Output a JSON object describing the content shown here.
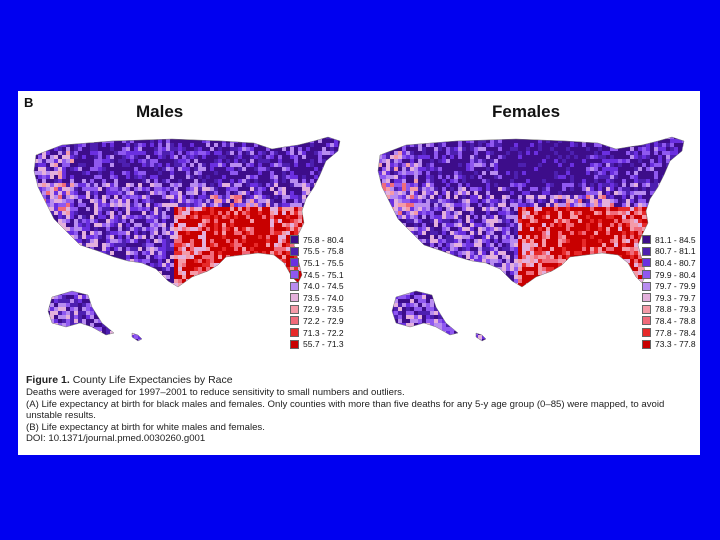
{
  "panel_letter": "B",
  "maps": {
    "males": {
      "title": "Males",
      "legend": [
        {
          "label": "75.8 - 80.4",
          "color": "#3d0d8a"
        },
        {
          "label": "75.5 - 75.8",
          "color": "#4d1fb0"
        },
        {
          "label": "75.1 - 75.5",
          "color": "#6a2fe0"
        },
        {
          "label": "74.5 - 75.1",
          "color": "#8f58f0"
        },
        {
          "label": "74.0 - 74.5",
          "color": "#b88cf0"
        },
        {
          "label": "73.5 - 74.0",
          "color": "#e4b0dc"
        },
        {
          "label": "72.9 - 73.5",
          "color": "#f49aa8"
        },
        {
          "label": "72.2 - 72.9",
          "color": "#f06a7a"
        },
        {
          "label": "71.3 - 72.2",
          "color": "#e62a2a"
        },
        {
          "label": "55.7 - 71.3",
          "color": "#c80000"
        }
      ]
    },
    "females": {
      "title": "Females",
      "legend": [
        {
          "label": "81.1 - 84.5",
          "color": "#3d0d8a"
        },
        {
          "label": "80.7 - 81.1",
          "color": "#4d1fb0"
        },
        {
          "label": "80.4 - 80.7",
          "color": "#6a2fe0"
        },
        {
          "label": "79.9 - 80.4",
          "color": "#8f58f0"
        },
        {
          "label": "79.7 - 79.9",
          "color": "#b88cf0"
        },
        {
          "label": "79.3 - 79.7",
          "color": "#e4b0dc"
        },
        {
          "label": "78.8 - 79.3",
          "color": "#f49aa8"
        },
        {
          "label": "78.4 - 78.8",
          "color": "#f06a7a"
        },
        {
          "label": "77.8 - 78.4",
          "color": "#e62a2a"
        },
        {
          "label": "73.3 - 77.8",
          "color": "#c80000"
        }
      ]
    }
  },
  "caption": {
    "figure_label": "Figure 1.",
    "figure_title": "County Life Expectancies by Race",
    "line1": "Deaths were averaged for 1997–2001 to reduce sensitivity to small numbers and outliers.",
    "line2": "(A) Life expectancy at birth for black males and females. Only counties with more than five deaths for any 5-y age group (0–85) were mapped, to avoid unstable results.",
    "line3": "(B) Life expectancy at birth for white males and females.",
    "line4": "DOI: 10.1371/journal.pmed.0030260.g001"
  },
  "colors": {
    "background": "#0000f0",
    "figure_background": "#ffffff"
  }
}
